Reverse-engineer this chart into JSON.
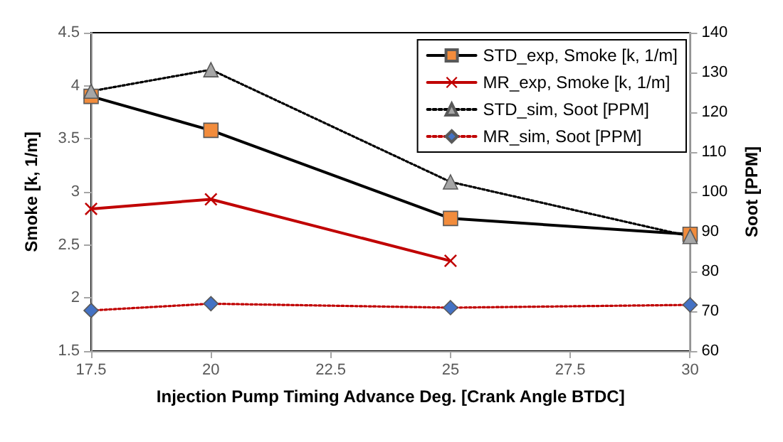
{
  "chart_data": {
    "type": "line",
    "xlabel": "Injection Pump Timing Advance Deg. [Crank Angle BTDC]",
    "ylabel": "Smoke [k, 1/m]",
    "y2label": "Soot [PPM]",
    "x": [
      17.5,
      20,
      25,
      30
    ],
    "xlim": [
      17.5,
      30
    ],
    "xticks": [
      17.5,
      20,
      22.5,
      25,
      27.5,
      30
    ],
    "ylim": [
      1.5,
      4.5
    ],
    "yticks": [
      1.5,
      2,
      2.5,
      3,
      3.5,
      4,
      4.5
    ],
    "y2lim": [
      60,
      140
    ],
    "y2ticks": [
      60,
      70,
      80,
      90,
      100,
      110,
      120,
      130,
      140
    ],
    "grid": false,
    "legend": "top right",
    "series": [
      {
        "name": "STD_exp, Smoke [k, 1/m]",
        "color": "#000000",
        "colors": [
          "#f28c3c",
          "#f28c3c",
          "#f28c3c",
          "#f28c3c"
        ],
        "marker": "square",
        "line_style": "solid",
        "values": [
          3.9,
          3.58,
          2.75,
          2.6
        ]
      },
      {
        "name": "MR_exp, Smoke [k, 1/m]",
        "color": "#c00000",
        "marker": "cross",
        "line_style": "solid",
        "values": [
          2.84,
          2.93,
          2.35,
          null
        ]
      },
      {
        "name": "STD_sim, Soot [PPM]",
        "color": "#000000",
        "colors": [
          "#a6a6a6",
          "#a6a6a6",
          "#a6a6a6",
          "#a6a6a6"
        ],
        "marker": "triangle",
        "line_style": "dotted",
        "axis": "y2",
        "values": [
          125.3,
          130.7,
          102.5,
          88.8
        ]
      },
      {
        "name": "MR_sim, Soot [PPM]",
        "color": "#c00000",
        "colors": [
          "#4472c4",
          "#4472c4",
          "#4472c4",
          "#4472c4"
        ],
        "marker": "diamond",
        "line_style": "dotted",
        "axis": "y2",
        "values": [
          70.2,
          71.9,
          70.9,
          71.6
        ]
      }
    ]
  }
}
